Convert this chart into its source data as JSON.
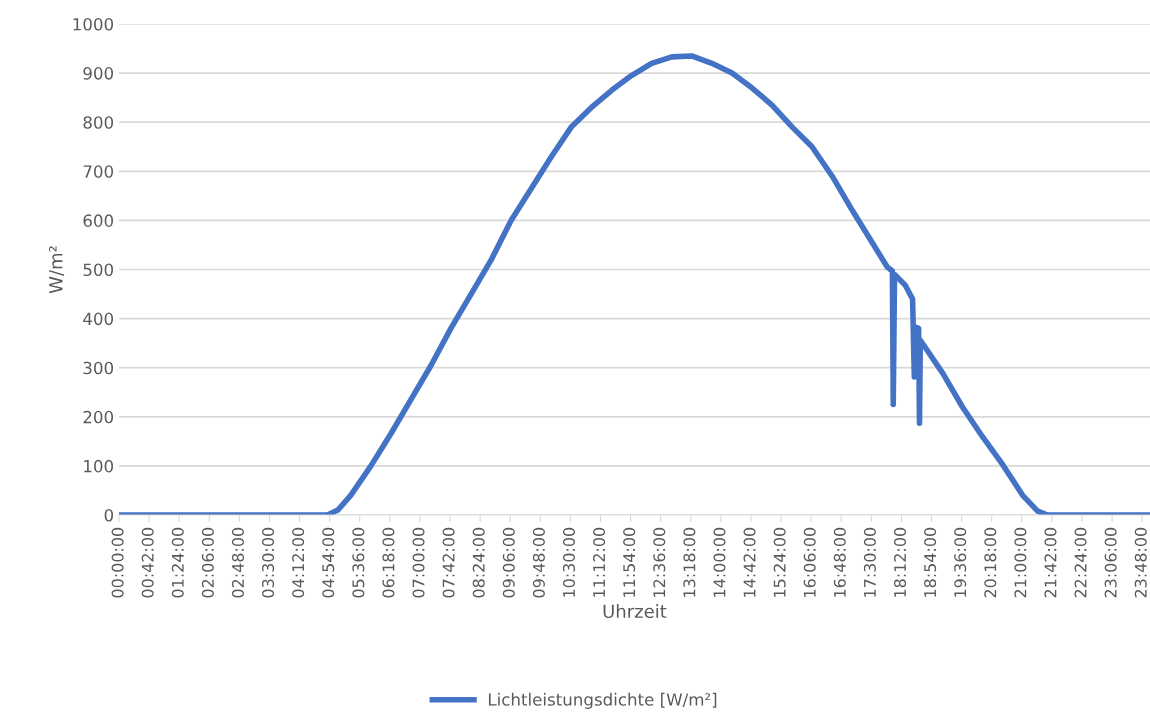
{
  "chart_data": {
    "type": "line",
    "xlabel": "Uhrzeit",
    "ylabel": "W/m²",
    "series": [
      {
        "name": "Lichtleistungsdichte [W/m²]",
        "color": "#4472c4",
        "x": [
          0,
          4.5,
          4.85,
          5.09,
          5.39,
          5.86,
          6.32,
          6.79,
          7.26,
          7.72,
          8.19,
          8.66,
          9.12,
          9.59,
          10.06,
          10.52,
          10.99,
          11.46,
          11.92,
          12.39,
          12.86,
          13.32,
          13.79,
          14.26,
          14.72,
          15.19,
          15.66,
          16.12,
          16.59,
          17.06,
          17.52,
          17.87,
          17.99,
          18.01,
          18.04,
          18.29,
          18.46,
          18.5,
          18.52,
          18.6,
          18.62,
          18.64,
          19.16,
          19.62,
          20.09,
          20.56,
          21.02,
          21.37,
          21.6,
          22.5,
          23.98
        ],
        "values": [
          0,
          0,
          0,
          10,
          40,
          100,
          165,
          235,
          305,
          380,
          450,
          520,
          600,
          665,
          730,
          790,
          830,
          865,
          895,
          920,
          933,
          935,
          920,
          900,
          870,
          835,
          790,
          750,
          690,
          620,
          555,
          505,
          497,
          225,
          490,
          468,
          440,
          281,
          383,
          380,
          187,
          356,
          289,
          220,
          159,
          102,
          40,
          8,
          0,
          0,
          0
        ]
      }
    ],
    "xlim": [
      0,
      23.98
    ],
    "xticks": [
      {
        "value": 0,
        "label": "00:00:00"
      },
      {
        "value": 0.7,
        "label": "00:42:00"
      },
      {
        "value": 1.4,
        "label": "01:24:00"
      },
      {
        "value": 2.1,
        "label": "02:06:00"
      },
      {
        "value": 2.8,
        "label": "02:48:00"
      },
      {
        "value": 3.5,
        "label": "03:30:00"
      },
      {
        "value": 4.2,
        "label": "04:12:00"
      },
      {
        "value": 4.9,
        "label": "04:54:00"
      },
      {
        "value": 5.6,
        "label": "05:36:00"
      },
      {
        "value": 6.3,
        "label": "06:18:00"
      },
      {
        "value": 7.0,
        "label": "07:00:00"
      },
      {
        "value": 7.7,
        "label": "07:42:00"
      },
      {
        "value": 8.4,
        "label": "08:24:00"
      },
      {
        "value": 9.1,
        "label": "09:06:00"
      },
      {
        "value": 9.8,
        "label": "09:48:00"
      },
      {
        "value": 10.5,
        "label": "10:30:00"
      },
      {
        "value": 11.2,
        "label": "11:12:00"
      },
      {
        "value": 11.9,
        "label": "11:54:00"
      },
      {
        "value": 12.6,
        "label": "12:36:00"
      },
      {
        "value": 13.3,
        "label": "13:18:00"
      },
      {
        "value": 14.0,
        "label": "14:00:00"
      },
      {
        "value": 14.7,
        "label": "14:42:00"
      },
      {
        "value": 15.4,
        "label": "15:24:00"
      },
      {
        "value": 16.1,
        "label": "16:06:00"
      },
      {
        "value": 16.8,
        "label": "16:48:00"
      },
      {
        "value": 17.5,
        "label": "17:30:00"
      },
      {
        "value": 18.2,
        "label": "18:12:00"
      },
      {
        "value": 18.9,
        "label": "18:54:00"
      },
      {
        "value": 19.6,
        "label": "19:36:00"
      },
      {
        "value": 20.3,
        "label": "20:18:00"
      },
      {
        "value": 21.0,
        "label": "21:00:00"
      },
      {
        "value": 21.7,
        "label": "21:42:00"
      },
      {
        "value": 22.4,
        "label": "22:24:00"
      },
      {
        "value": 23.1,
        "label": "23:06:00"
      },
      {
        "value": 23.8,
        "label": "23:48:00"
      }
    ],
    "ylim": [
      0,
      1000
    ],
    "yticks": [
      0,
      100,
      200,
      300,
      400,
      500,
      600,
      700,
      800,
      900,
      1000
    ],
    "grid": "y",
    "legend": "bottom",
    "marker": "none",
    "line_style": "solid"
  }
}
